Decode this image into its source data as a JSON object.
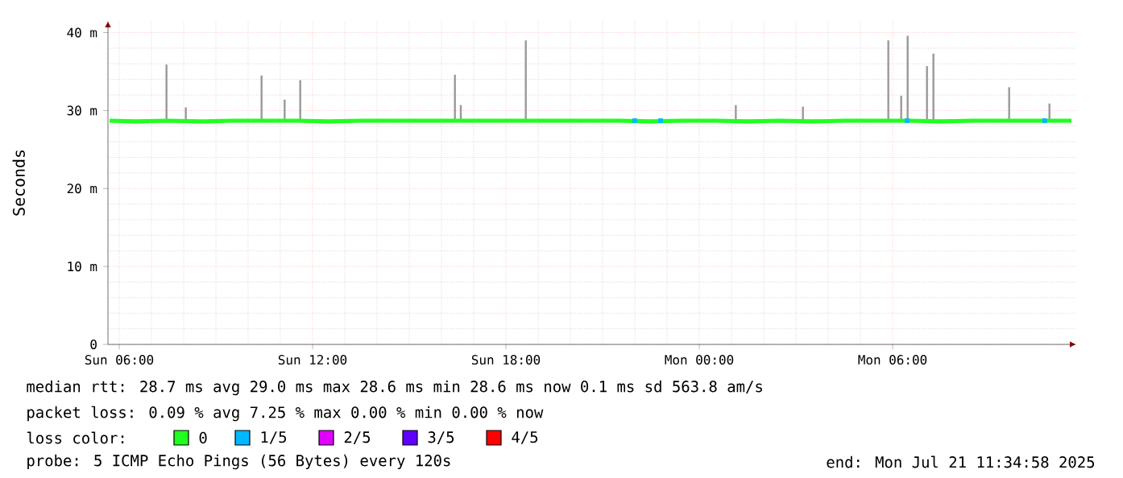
{
  "chart_data": {
    "type": "line",
    "ylabel": "Seconds",
    "legend_title": "loss color:",
    "xlim": [
      "2025-07-20T05:39",
      "2025-07-21T11:42"
    ],
    "xticks": [
      {
        "value": "2025-07-20T06:00",
        "label": "Sun 06:00"
      },
      {
        "value": "2025-07-20T12:00",
        "label": "Sun 12:00"
      },
      {
        "value": "2025-07-20T18:00",
        "label": "Sun 18:00"
      },
      {
        "value": "2025-07-21T00:00",
        "label": "Mon 00:00"
      },
      {
        "value": "2025-07-21T06:00",
        "label": "Mon 06:00"
      }
    ],
    "ylim": [
      0,
      41.5
    ],
    "yticks": [
      0,
      {
        "value": 10,
        "label": "10 m"
      },
      {
        "value": 20,
        "label": "20 m"
      },
      {
        "value": 30,
        "label": "30 m"
      },
      {
        "value": 40,
        "label": "40 m"
      }
    ],
    "grid": true,
    "legend": "bottom",
    "series": [
      {
        "type": "bar",
        "color": "#999999",
        "x": [
          "2025-07-20T07:28",
          "2025-07-20T08:04",
          "2025-07-20T10:25",
          "2025-07-20T11:08",
          "2025-07-20T11:37",
          "2025-07-20T16:25",
          "2025-07-20T16:36",
          "2025-07-20T18:37",
          "2025-07-21T01:08",
          "2025-07-21T03:13",
          "2025-07-21T05:52",
          "2025-07-21T06:16",
          "2025-07-21T06:28",
          "2025-07-21T07:04",
          "2025-07-21T07:16",
          "2025-07-21T09:37",
          "2025-07-21T10:52"
        ],
        "base": [
          28.7,
          28.7,
          28.7,
          28.7,
          28.7,
          28.7,
          28.7,
          28.7,
          28.7,
          28.7,
          28.7,
          28.7,
          28.7,
          28.7,
          28.7,
          28.7,
          28.7
        ],
        "values": [
          7.2,
          1.7,
          5.8,
          2.7,
          5.2,
          5.9,
          2.0,
          10.3,
          2.0,
          1.8,
          10.3,
          3.2,
          10.9,
          7.0,
          8.6,
          4.3,
          2.2
        ]
      },
      {
        "name": "0",
        "color": "#20ff20",
        "x": [
          "2025-07-20T05:42",
          "2025-07-20T06:30",
          "2025-07-20T07:30",
          "2025-07-20T08:30",
          "2025-07-20T09:30",
          "2025-07-20T10:30",
          "2025-07-20T11:30",
          "2025-07-20T12:30",
          "2025-07-20T13:30",
          "2025-07-20T14:30",
          "2025-07-20T15:30",
          "2025-07-20T16:30",
          "2025-07-20T17:30",
          "2025-07-20T18:30",
          "2025-07-20T19:30",
          "2025-07-20T20:30",
          "2025-07-20T21:30",
          "2025-07-20T22:30",
          "2025-07-20T23:30",
          "2025-07-21T00:30",
          "2025-07-21T01:30",
          "2025-07-21T02:30",
          "2025-07-21T03:30",
          "2025-07-21T04:30",
          "2025-07-21T05:30",
          "2025-07-21T06:30",
          "2025-07-21T07:30",
          "2025-07-21T08:30",
          "2025-07-21T09:30",
          "2025-07-21T10:30",
          "2025-07-21T11:33"
        ],
        "values": [
          28.7,
          28.6,
          28.7,
          28.6,
          28.7,
          28.7,
          28.7,
          28.6,
          28.7,
          28.7,
          28.7,
          28.7,
          28.7,
          28.7,
          28.7,
          28.7,
          28.7,
          28.6,
          28.7,
          28.7,
          28.6,
          28.7,
          28.6,
          28.7,
          28.7,
          28.7,
          28.6,
          28.7,
          28.7,
          28.7,
          28.7
        ]
      },
      {
        "type": "scatter",
        "name": "1/5",
        "color": "#00b8ff",
        "marker": "square",
        "x": [
          "2025-07-20T22:00",
          "2025-07-20T22:48",
          "2025-07-21T06:27",
          "2025-07-21T10:43"
        ],
        "values": [
          28.7,
          28.7,
          28.7,
          28.7
        ]
      },
      {
        "type": "scatter",
        "name": "2/5",
        "color": "#e000ff",
        "marker": "square"
      },
      {
        "type": "scatter",
        "name": "3/5",
        "color": "#6000ff",
        "marker": "square"
      },
      {
        "type": "scatter",
        "name": "4/5",
        "color": "#ff0000",
        "marker": "square"
      }
    ],
    "annotations": [
      "median rtt:  28.7 ms avg  29.0 ms max  28.6 ms min  28.6 ms now  0.1 ms sd  563.8   am/s",
      "packet loss: 0.09 % avg  7.25 % max  0.00 % min  0.00 % now",
      "probe:       5 ICMP Echo Pings (56 Bytes) every 120s",
      "end: Mon Jul 21 11:34:58 2025"
    ]
  }
}
